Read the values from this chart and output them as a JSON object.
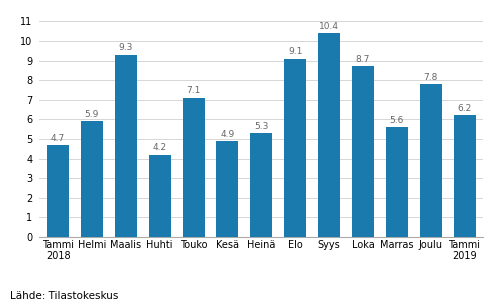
{
  "categories": [
    "Tammi\n2018",
    "Helmi",
    "Maalis",
    "Huhti",
    "Touko",
    "Kesä",
    "Heinä",
    "Elo",
    "Syys",
    "Loka",
    "Marras",
    "Joulu",
    "Tammi\n2019"
  ],
  "values": [
    4.7,
    5.9,
    9.3,
    4.2,
    7.1,
    4.9,
    5.3,
    9.1,
    10.4,
    8.7,
    5.6,
    7.8,
    6.2
  ],
  "bar_color": "#1a7aad",
  "ylim": [
    0,
    11
  ],
  "yticks": [
    0,
    1,
    2,
    3,
    4,
    5,
    6,
    7,
    8,
    9,
    10,
    11
  ],
  "source_text": "Lähde: Tilastokeskus",
  "label_fontsize": 6.5,
  "tick_fontsize": 7.0,
  "source_fontsize": 7.5,
  "bar_width": 0.65,
  "grid_color": "#d0d0d0",
  "spine_color": "#aaaaaa",
  "label_color": "#666666"
}
